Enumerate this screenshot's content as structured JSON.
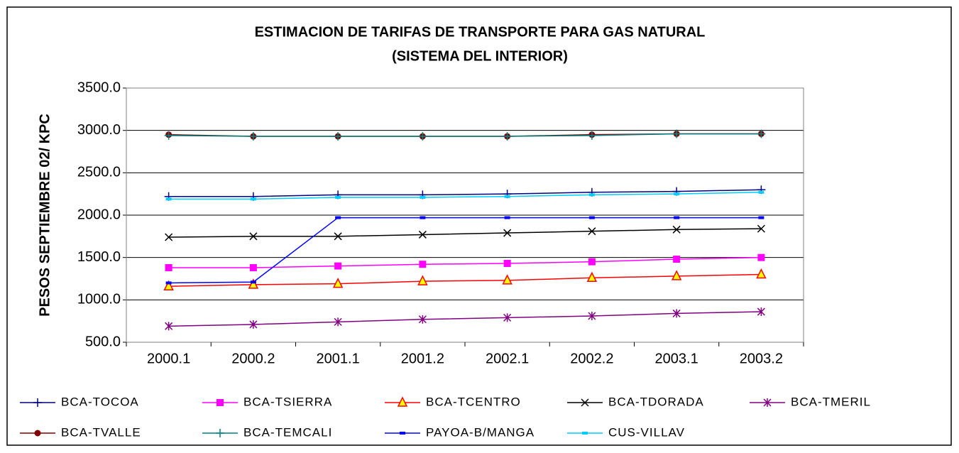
{
  "chart_data": {
    "type": "line",
    "title": "ESTIMACION DE TARIFAS DE TRANSPORTE PARA GAS NATURAL",
    "subtitle": "(SISTEMA DEL INTERIOR)",
    "y_label": "PESOS SEPTIEMBRE 02/ KPC",
    "categories": [
      "2000.1",
      "2000.2",
      "2001.1",
      "2001.2",
      "2002.1",
      "2002.2",
      "2003.1",
      "2003.2"
    ],
    "ylim": [
      500,
      3500
    ],
    "yticks": [
      {
        "value": 500,
        "label": "500.0"
      },
      {
        "value": 1000,
        "label": "1000.0"
      },
      {
        "value": 1500,
        "label": "1500.0"
      },
      {
        "value": 2000,
        "label": "2000.0"
      },
      {
        "value": 2500,
        "label": "2500.0"
      },
      {
        "value": 3000,
        "label": "3000.0"
      },
      {
        "value": 3500,
        "label": "3500.0"
      }
    ],
    "grid": true,
    "legend": "bottom",
    "series": [
      {
        "name": "BCA-TOCOA",
        "color": "#000080",
        "marker": "plus",
        "values": [
          2220,
          2220,
          2240,
          2240,
          2250,
          2270,
          2280,
          2300
        ]
      },
      {
        "name": "BCA-TSIERRA",
        "color": "#ff00ff",
        "marker": "square",
        "values": [
          1380,
          1380,
          1400,
          1420,
          1430,
          1450,
          1480,
          1500
        ]
      },
      {
        "name": "BCA-TCENTRO",
        "color": "#ff0000",
        "marker": "triangle",
        "marker_fill": "#ffff00",
        "values": [
          1160,
          1180,
          1190,
          1220,
          1230,
          1260,
          1280,
          1300
        ]
      },
      {
        "name": "BCA-TDORADA",
        "color": "#000000",
        "marker": "x",
        "values": [
          1740,
          1750,
          1750,
          1770,
          1790,
          1810,
          1830,
          1840
        ]
      },
      {
        "name": "BCA-TMERIL",
        "color": "#800080",
        "marker": "star",
        "values": [
          690,
          710,
          740,
          770,
          790,
          810,
          840,
          860
        ]
      },
      {
        "name": "BCA-TVALLE",
        "color": "#800000",
        "marker": "circle",
        "values": [
          2950,
          2930,
          2930,
          2930,
          2930,
          2950,
          2960,
          2960
        ]
      },
      {
        "name": "BCA-TEMCALI",
        "color": "#008080",
        "marker": "plus",
        "values": [
          2940,
          2930,
          2930,
          2930,
          2930,
          2940,
          2960,
          2960
        ]
      },
      {
        "name": "PAYOA-B/MANGA",
        "color": "#0000ff",
        "marker": "dash",
        "values": [
          1200,
          1210,
          1970,
          1970,
          1970,
          1970,
          1970,
          1970
        ]
      },
      {
        "name": "CUS-VILLAV",
        "color": "#00ccff",
        "marker": "dash",
        "values": [
          2190,
          2190,
          2210,
          2210,
          2220,
          2240,
          2250,
          2270
        ]
      }
    ]
  }
}
